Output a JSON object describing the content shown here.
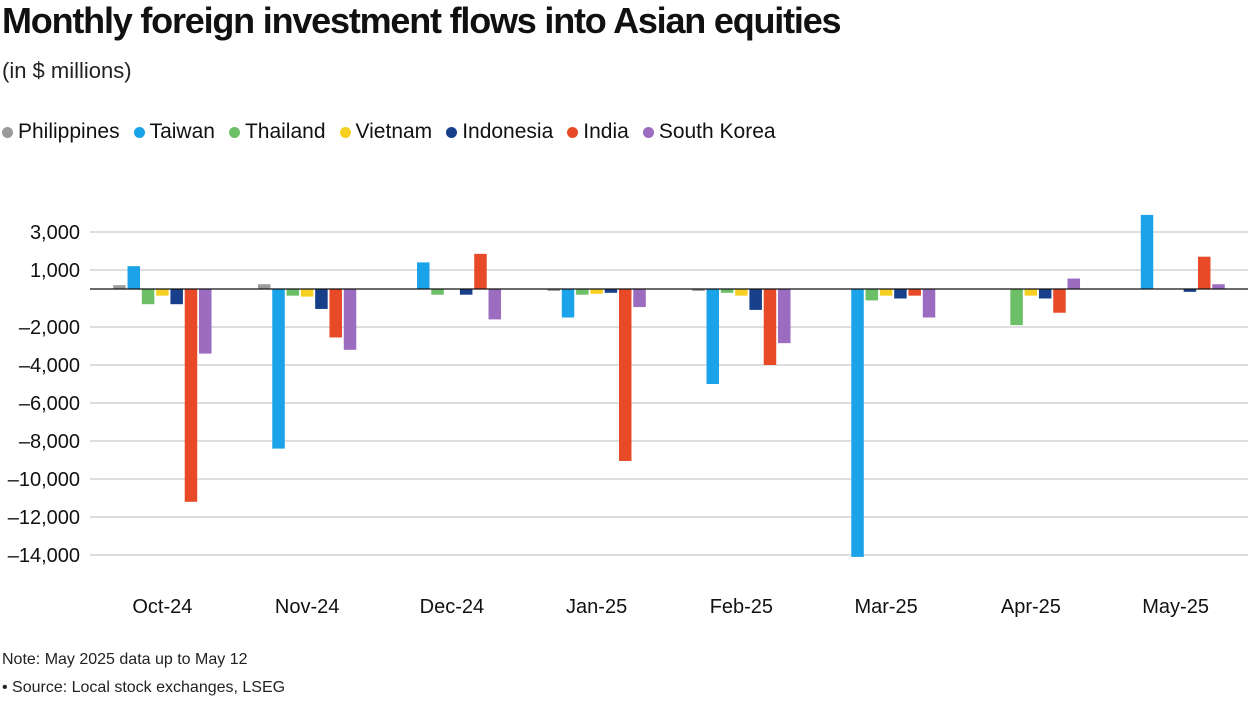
{
  "chart_data": {
    "type": "bar",
    "title": "Monthly foreign investment flows into Asian equities",
    "subtitle": "(in $ millions)",
    "categories": [
      "Oct-24",
      "Nov-24",
      "Dec-24",
      "Jan-25",
      "Feb-25",
      "Mar-25",
      "Apr-25",
      "May-25"
    ],
    "series": [
      {
        "name": "Philippines",
        "color": "#9a9a9a",
        "values": [
          200,
          250,
          0,
          -100,
          -100,
          0,
          0,
          0
        ]
      },
      {
        "name": "Taiwan",
        "color": "#1aa3e8",
        "values": [
          1200,
          -8400,
          1400,
          -1500,
          -5000,
          -14100,
          0,
          3900
        ]
      },
      {
        "name": "Thailand",
        "color": "#6dbf67",
        "values": [
          -800,
          -350,
          -300,
          -300,
          -200,
          -600,
          -1900,
          0
        ]
      },
      {
        "name": "Vietnam",
        "color": "#f6d020",
        "values": [
          -350,
          -400,
          0,
          -250,
          -350,
          -350,
          -350,
          0
        ]
      },
      {
        "name": "Indonesia",
        "color": "#173f8a",
        "values": [
          -800,
          -1050,
          -300,
          -200,
          -1100,
          -500,
          -500,
          -150
        ]
      },
      {
        "name": "India",
        "color": "#e84a27",
        "values": [
          -11200,
          -2550,
          1850,
          -9050,
          -4000,
          -350,
          -1250,
          1700
        ]
      },
      {
        "name": "South Korea",
        "color": "#9b6cbf",
        "values": [
          -3400,
          -3200,
          -1600,
          -950,
          -2850,
          -1500,
          550,
          250
        ]
      }
    ],
    "y_ticks": [
      {
        "value": 3000,
        "label": "3,000"
      },
      {
        "value": 1000,
        "label": "1,000"
      },
      {
        "value": -2000,
        "label": "–2,000"
      },
      {
        "value": -4000,
        "label": "–4,000"
      },
      {
        "value": -6000,
        "label": "–6,000"
      },
      {
        "value": -8000,
        "label": "–8,000"
      },
      {
        "value": -10000,
        "label": "–10,000"
      },
      {
        "value": -12000,
        "label": "–12,000"
      },
      {
        "value": -14000,
        "label": "–14,000"
      }
    ],
    "ylim": [
      -15000,
      4000
    ],
    "grid": true,
    "legend_position": "top-left"
  },
  "footer": {
    "note": "Note: May 2025 data up to May 12",
    "source": "• Source: Local stock exchanges, LSEG"
  }
}
